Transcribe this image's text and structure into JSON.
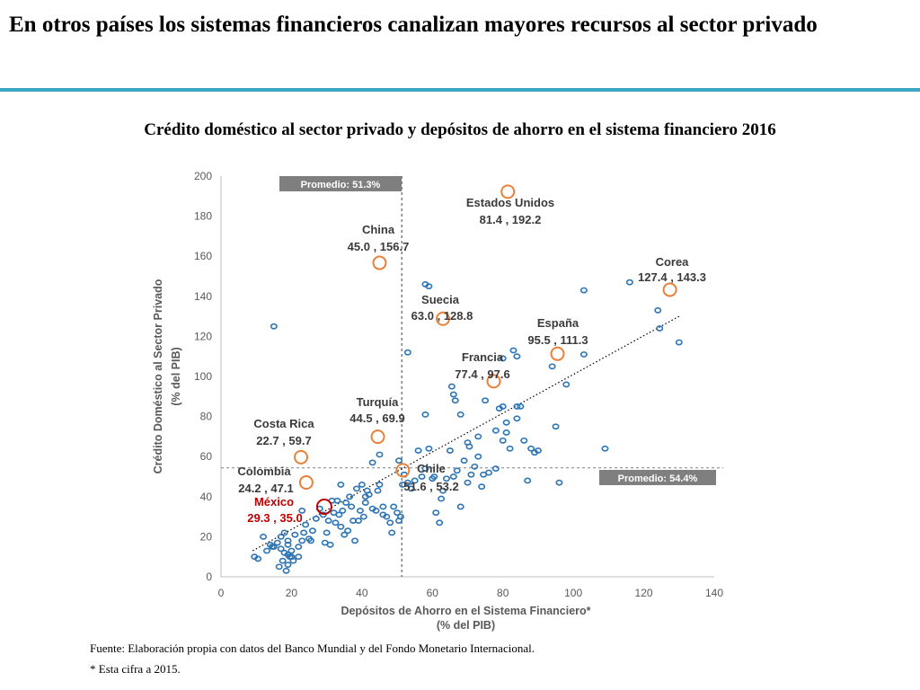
{
  "slide": {
    "title": "En otros países los sistemas financieros canalizan mayores recursos al sector privado",
    "subtitle": "Crédito doméstico al sector privado y depósitos de ahorro en el sistema financiero 2016",
    "source": "Fuente: Elaboración propia con datos del Banco Mundial y del Fondo Monetario Internacional.",
    "note": "* Esta cifra a 2015.",
    "accent_color": "#3aa6c4"
  },
  "chart_data": {
    "type": "scatter",
    "xlabel": [
      "Depósitos de Ahorro en el Sistema Financiero*",
      "(% del PIB)"
    ],
    "ylabel": [
      "Crédito Doméstico al Sector Privado",
      "(% del PIB)"
    ],
    "xlim": [
      0,
      140
    ],
    "ylim": [
      0,
      200
    ],
    "xticks": [
      "0",
      "20",
      "40",
      "60",
      "80",
      "100",
      "120",
      "140"
    ],
    "yticks": [
      "0",
      "20",
      "40",
      "60",
      "80",
      "100",
      "120",
      "140",
      "160",
      "180",
      "200"
    ],
    "grid": false,
    "point_color": "#2e75b6",
    "highlight_color": "#e9803a",
    "mexico_color": "#c00000",
    "label_color": "#3a3a3a",
    "averages": {
      "x": {
        "value": 51.3,
        "label": "Promedio: 51.3%"
      },
      "y": {
        "value": 54.4,
        "label": "Promedio: 54.4%"
      }
    },
    "trendline": {
      "from": [
        9,
        13
      ],
      "to": [
        130,
        130
      ]
    },
    "highlighted": [
      {
        "name": "Estados Unidos",
        "value_label": "81.4 ,  192.2",
        "x": 81.4,
        "y": 192.2
      },
      {
        "name": "China",
        "value_label": "45.0 ,  156.7",
        "x": 45.0,
        "y": 156.7
      },
      {
        "name": "Corea",
        "value_label": "127.4 ,  143.3",
        "x": 127.4,
        "y": 143.3
      },
      {
        "name": "Suecia",
        "value_label": "63.0 ,  128.8",
        "x": 63.0,
        "y": 128.8
      },
      {
        "name": "España",
        "value_label": "95.5 ,  111.3",
        "x": 95.5,
        "y": 111.3
      },
      {
        "name": "Francia",
        "value_label": "77.4 ,  97.6",
        "x": 77.4,
        "y": 97.6
      },
      {
        "name": "Turquía",
        "value_label": "44.5 ,  69.9",
        "x": 44.5,
        "y": 69.9
      },
      {
        "name": "Costa Rica",
        "value_label": "22.7 ,  59.7",
        "x": 22.7,
        "y": 59.7
      },
      {
        "name": "Chile",
        "value_label": "51.6 ,  53.2",
        "x": 51.6,
        "y": 53.2
      },
      {
        "name": "Colombia",
        "value_label": "24.2 ,  47.1",
        "x": 24.2,
        "y": 47.1
      },
      {
        "name": "México",
        "value_label": "29.3 ,  35.0",
        "x": 29.3,
        "y": 35.0
      }
    ],
    "points": [
      [
        9.5,
        10
      ],
      [
        10.5,
        9
      ],
      [
        12,
        20
      ],
      [
        13,
        13
      ],
      [
        14,
        16
      ],
      [
        15,
        15
      ],
      [
        16,
        17
      ],
      [
        16.5,
        5
      ],
      [
        17,
        20
      ],
      [
        17,
        14
      ],
      [
        17.5,
        8
      ],
      [
        18,
        22
      ],
      [
        18,
        12
      ],
      [
        18.5,
        3
      ],
      [
        19,
        18
      ],
      [
        19,
        16
      ],
      [
        19.5,
        10
      ],
      [
        19,
        6
      ],
      [
        20,
        13
      ],
      [
        20.5,
        8
      ],
      [
        21,
        21
      ],
      [
        22,
        15
      ],
      [
        22,
        10
      ],
      [
        23,
        18
      ],
      [
        23.5,
        22
      ],
      [
        24,
        26
      ],
      [
        25,
        19
      ],
      [
        25.5,
        18
      ],
      [
        26,
        23
      ],
      [
        27,
        29
      ],
      [
        28,
        34
      ],
      [
        29,
        31
      ],
      [
        29.5,
        17
      ],
      [
        30,
        22
      ],
      [
        30.5,
        28
      ],
      [
        31,
        16
      ],
      [
        31.5,
        38
      ],
      [
        32,
        32
      ],
      [
        32.5,
        27
      ],
      [
        33,
        38
      ],
      [
        33.5,
        31
      ],
      [
        34,
        25
      ],
      [
        34.5,
        33
      ],
      [
        35,
        21
      ],
      [
        35.5,
        37
      ],
      [
        36,
        23
      ],
      [
        36.5,
        40
      ],
      [
        37,
        35
      ],
      [
        38,
        18
      ],
      [
        38.5,
        44
      ],
      [
        39,
        28
      ],
      [
        39.5,
        33
      ],
      [
        40,
        46
      ],
      [
        40.5,
        30
      ],
      [
        41,
        37
      ],
      [
        41.5,
        43
      ],
      [
        42,
        41
      ],
      [
        43,
        34
      ],
      [
        44,
        33
      ],
      [
        44.5,
        43
      ],
      [
        45,
        46
      ],
      [
        46,
        35
      ],
      [
        47,
        30
      ],
      [
        48,
        27
      ],
      [
        48.5,
        22
      ],
      [
        49,
        35
      ],
      [
        50,
        32
      ],
      [
        50.5,
        28
      ],
      [
        51,
        30
      ],
      [
        51.5,
        46
      ],
      [
        52,
        51
      ],
      [
        53,
        47
      ],
      [
        54,
        44
      ],
      [
        55,
        48
      ],
      [
        56,
        63
      ],
      [
        57,
        50
      ],
      [
        58,
        54
      ],
      [
        59,
        64
      ],
      [
        60,
        49
      ],
      [
        61,
        32
      ],
      [
        62,
        27
      ],
      [
        62.5,
        39
      ],
      [
        63,
        43
      ],
      [
        64,
        49
      ],
      [
        65,
        63
      ],
      [
        66,
        50
      ],
      [
        67,
        53
      ],
      [
        68,
        35
      ],
      [
        69,
        58
      ],
      [
        70,
        47
      ],
      [
        71,
        51
      ],
      [
        72,
        55
      ],
      [
        73,
        60
      ],
      [
        74,
        45
      ],
      [
        74.5,
        51
      ],
      [
        75,
        88
      ],
      [
        76,
        52
      ],
      [
        78,
        54
      ],
      [
        79,
        84
      ],
      [
        80,
        68
      ],
      [
        81,
        72
      ],
      [
        82,
        64
      ],
      [
        84,
        79
      ],
      [
        85,
        85
      ],
      [
        86,
        68
      ],
      [
        87,
        48
      ],
      [
        88,
        64
      ],
      [
        89,
        62
      ],
      [
        90,
        63
      ],
      [
        95,
        75
      ],
      [
        96,
        47
      ],
      [
        98,
        96
      ],
      [
        103,
        111
      ],
      [
        109,
        64
      ],
      [
        116,
        147
      ],
      [
        124,
        133
      ],
      [
        124.5,
        124
      ],
      [
        130,
        117
      ],
      [
        20,
        10
      ],
      [
        46,
        31
      ],
      [
        34,
        46
      ],
      [
        37.5,
        28
      ],
      [
        41,
        40
      ],
      [
        50.5,
        58
      ],
      [
        58,
        81
      ],
      [
        60.5,
        50
      ],
      [
        65.5,
        95
      ],
      [
        66,
        91
      ],
      [
        66.5,
        88
      ],
      [
        68,
        81
      ],
      [
        70,
        67
      ],
      [
        70.5,
        65
      ],
      [
        80,
        85
      ],
      [
        80,
        109
      ],
      [
        81,
        77
      ],
      [
        83,
        113
      ],
      [
        84,
        85
      ],
      [
        78,
        73
      ],
      [
        94,
        105
      ],
      [
        15,
        125
      ],
      [
        23,
        33
      ],
      [
        14.5,
        15
      ],
      [
        19,
        11
      ],
      [
        43,
        57
      ],
      [
        45,
        61
      ],
      [
        53,
        112
      ],
      [
        58,
        146
      ],
      [
        59,
        145
      ],
      [
        73,
        70
      ],
      [
        84,
        110
      ],
      [
        103,
        143
      ]
    ]
  }
}
